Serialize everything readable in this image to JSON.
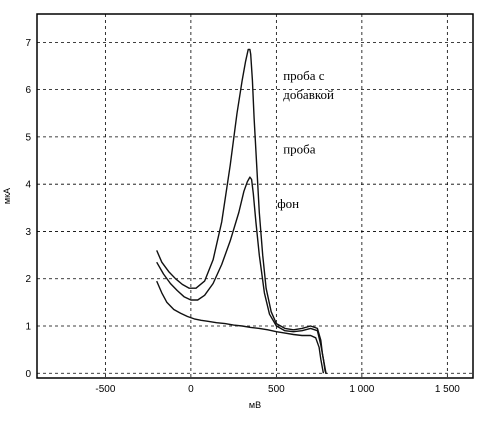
{
  "chart_data": {
    "type": "line",
    "title": "",
    "xlabel": "мВ",
    "ylabel": "мкА",
    "xlim": [
      -900,
      1650
    ],
    "ylim": [
      -0.1,
      7.6
    ],
    "grid": true,
    "x_ticks": [
      {
        "value": -500,
        "label": "-500"
      },
      {
        "value": 0,
        "label": "0"
      },
      {
        "value": 500,
        "label": "500"
      },
      {
        "value": 1000,
        "label": "1 000"
      },
      {
        "value": 1500,
        "label": "1 500"
      }
    ],
    "y_ticks": [
      {
        "value": 0,
        "label": "0"
      },
      {
        "value": 1,
        "label": "1"
      },
      {
        "value": 2,
        "label": "2"
      },
      {
        "value": 3,
        "label": "3"
      },
      {
        "value": 4,
        "label": "4"
      },
      {
        "value": 5,
        "label": "5"
      },
      {
        "value": 6,
        "label": "6"
      },
      {
        "value": 7,
        "label": "7"
      }
    ],
    "series": [
      {
        "x": [
          -200,
          -170,
          -130,
          -90,
          -50,
          -10,
          30,
          80,
          130,
          180,
          230,
          270,
          300,
          320,
          335,
          345,
          350,
          360,
          370,
          385,
          400,
          420,
          440,
          470,
          500,
          550,
          600,
          650,
          700,
          740,
          760,
          770,
          785,
          790,
          795
        ],
        "y": [
          2.6,
          2.35,
          2.15,
          2.0,
          1.88,
          1.8,
          1.8,
          1.95,
          2.4,
          3.2,
          4.4,
          5.5,
          6.2,
          6.6,
          6.85,
          6.85,
          6.75,
          6.2,
          5.4,
          4.4,
          3.4,
          2.5,
          1.8,
          1.3,
          1.05,
          0.95,
          0.92,
          0.95,
          1.0,
          0.95,
          0.7,
          0.4,
          0.1,
          0.0,
          0.0
        ]
      },
      {
        "x": [
          -200,
          -160,
          -120,
          -80,
          -40,
          0,
          40,
          80,
          130,
          180,
          230,
          280,
          310,
          330,
          345,
          355,
          365,
          380,
          400,
          430,
          460,
          500,
          550,
          600,
          650,
          700,
          740,
          760,
          775,
          785,
          790
        ],
        "y": [
          2.35,
          2.1,
          1.9,
          1.75,
          1.62,
          1.55,
          1.55,
          1.65,
          1.9,
          2.3,
          2.8,
          3.4,
          3.85,
          4.05,
          4.15,
          4.1,
          3.8,
          3.2,
          2.5,
          1.7,
          1.25,
          1.0,
          0.9,
          0.88,
          0.9,
          0.95,
          0.9,
          0.6,
          0.3,
          0.05,
          0.0
        ]
      },
      {
        "x": [
          -200,
          -170,
          -140,
          -100,
          -60,
          -20,
          20,
          60,
          100,
          150,
          200,
          250,
          300,
          350,
          400,
          450,
          500,
          550,
          600,
          650,
          700,
          730,
          750,
          760,
          770,
          775
        ],
        "y": [
          1.95,
          1.7,
          1.5,
          1.35,
          1.27,
          1.2,
          1.15,
          1.12,
          1.1,
          1.07,
          1.05,
          1.02,
          1.0,
          0.97,
          0.95,
          0.92,
          0.88,
          0.85,
          0.82,
          0.8,
          0.8,
          0.75,
          0.55,
          0.3,
          0.1,
          0.0
        ]
      }
    ],
    "annotations": [
      {
        "id": "anno-1",
        "text": "проба с",
        "x": 540,
        "y": 6.2
      },
      {
        "id": "anno-2",
        "text": "добавкой",
        "x": 540,
        "y": 5.8
      },
      {
        "id": "anno-3",
        "text": "проба",
        "x": 540,
        "y": 4.65
      },
      {
        "id": "anno-4",
        "text": "фон",
        "x": 505,
        "y": 3.5
      }
    ]
  }
}
